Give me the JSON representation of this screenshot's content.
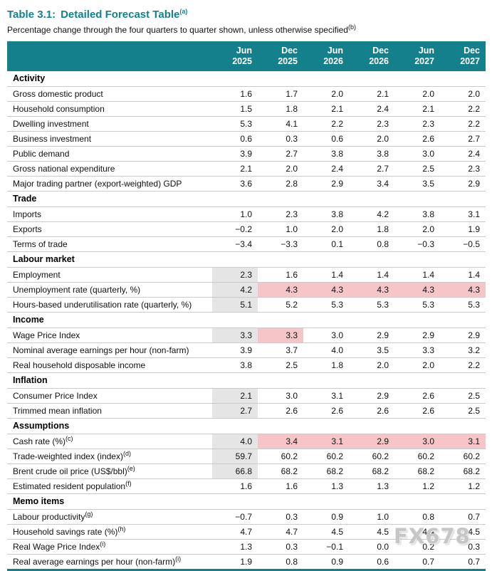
{
  "title": {
    "prefix": "Table 3.1:",
    "text": "Detailed Forecast Table",
    "sup": "(a)"
  },
  "subtitle": {
    "text": "Percentage change through the four quarters to quarter shown, unless otherwise specified",
    "sup": "(b)"
  },
  "columns": [
    "Jun 2025",
    "Dec 2025",
    "Jun 2026",
    "Dec 2026",
    "Jun 2027",
    "Dec 2027"
  ],
  "watermark": "FX678",
  "colors": {
    "header_background": "#14808c",
    "title_text": "#14808c",
    "actual_cell_shading": "#e5e5e5",
    "highlight_cell_shading": "#f6c5c8",
    "row_divider": "#cbcbcb"
  },
  "sections": [
    {
      "name": "Activity",
      "rows": [
        {
          "label": "Gross domestic product",
          "values": [
            "1.6",
            "1.7",
            "2.0",
            "2.1",
            "2.0",
            "2.0"
          ]
        },
        {
          "label": "Household consumption",
          "values": [
            "1.5",
            "1.8",
            "2.1",
            "2.4",
            "2.1",
            "2.2"
          ]
        },
        {
          "label": "Dwelling investment",
          "values": [
            "5.3",
            "4.1",
            "2.2",
            "2.3",
            "2.3",
            "2.2"
          ]
        },
        {
          "label": "Business investment",
          "values": [
            "0.6",
            "0.3",
            "0.6",
            "2.0",
            "2.6",
            "2.7"
          ]
        },
        {
          "label": "Public demand",
          "values": [
            "3.9",
            "2.7",
            "3.8",
            "3.8",
            "3.0",
            "2.4"
          ]
        },
        {
          "label": "Gross national expenditure",
          "values": [
            "2.1",
            "2.0",
            "2.4",
            "2.7",
            "2.5",
            "2.3"
          ]
        },
        {
          "label": "Major trading partner (export-weighted) GDP",
          "values": [
            "3.6",
            "2.8",
            "2.9",
            "3.4",
            "3.5",
            "2.9"
          ]
        }
      ]
    },
    {
      "name": "Trade",
      "rows": [
        {
          "label": "Imports",
          "values": [
            "1.0",
            "2.3",
            "3.8",
            "4.2",
            "3.8",
            "3.1"
          ]
        },
        {
          "label": "Exports",
          "values": [
            "−0.2",
            "1.0",
            "2.0",
            "1.8",
            "2.0",
            "1.9"
          ]
        },
        {
          "label": "Terms of trade",
          "values": [
            "−3.4",
            "−3.3",
            "0.1",
            "0.8",
            "−0.3",
            "−0.5"
          ]
        }
      ]
    },
    {
      "name": "Labour market",
      "rows": [
        {
          "label": "Employment",
          "values": [
            "2.3",
            "1.6",
            "1.4",
            "1.4",
            "1.4",
            "1.4"
          ],
          "shaded": [
            0
          ]
        },
        {
          "label": "Unemployment rate (quarterly, %)",
          "values": [
            "4.2",
            "4.3",
            "4.3",
            "4.3",
            "4.3",
            "4.3"
          ],
          "shaded": [
            0
          ],
          "highlight": [
            1,
            2,
            3,
            4,
            5
          ]
        },
        {
          "label": "Hours-based underutilisation rate (quarterly, %)",
          "values": [
            "5.1",
            "5.2",
            "5.3",
            "5.3",
            "5.3",
            "5.3"
          ],
          "shaded": [
            0
          ]
        }
      ]
    },
    {
      "name": "Income",
      "rows": [
        {
          "label": "Wage Price Index",
          "values": [
            "3.3",
            "3.3",
            "3.0",
            "2.9",
            "2.9",
            "2.9"
          ],
          "shaded": [
            0
          ],
          "highlight": [
            1
          ]
        },
        {
          "label": "Nominal average earnings per hour (non-farm)",
          "values": [
            "3.9",
            "3.7",
            "4.0",
            "3.5",
            "3.3",
            "3.2"
          ]
        },
        {
          "label": "Real household disposable income",
          "values": [
            "3.8",
            "2.5",
            "1.8",
            "2.0",
            "2.0",
            "2.2"
          ]
        }
      ]
    },
    {
      "name": "Inflation",
      "rows": [
        {
          "label": "Consumer Price Index",
          "values": [
            "2.1",
            "3.0",
            "3.1",
            "2.9",
            "2.6",
            "2.5"
          ],
          "shaded": [
            0
          ]
        },
        {
          "label": "Trimmed mean inflation",
          "values": [
            "2.7",
            "2.6",
            "2.6",
            "2.6",
            "2.6",
            "2.5"
          ],
          "shaded": [
            0
          ]
        }
      ]
    },
    {
      "name": "Assumptions",
      "rows": [
        {
          "label": "Cash rate (%)",
          "sup": "(c)",
          "values": [
            "4.0",
            "3.4",
            "3.1",
            "2.9",
            "3.0",
            "3.1"
          ],
          "shaded": [
            0
          ],
          "highlight": [
            1,
            2,
            3,
            4,
            5
          ]
        },
        {
          "label": "Trade-weighted index (index)",
          "sup": "(d)",
          "values": [
            "59.7",
            "60.2",
            "60.2",
            "60.2",
            "60.2",
            "60.2"
          ],
          "shaded": [
            0
          ]
        },
        {
          "label": "Brent crude oil price (US$/bbl)",
          "sup": "(e)",
          "values": [
            "66.8",
            "68.2",
            "68.2",
            "68.2",
            "68.2",
            "68.2"
          ],
          "shaded": [
            0
          ]
        },
        {
          "label": "Estimated resident population",
          "sup": "(f)",
          "values": [
            "1.6",
            "1.6",
            "1.3",
            "1.3",
            "1.2",
            "1.2"
          ]
        }
      ]
    },
    {
      "name": "Memo items",
      "rows": [
        {
          "label": "Labour productivity",
          "sup": "(g)",
          "values": [
            "−0.7",
            "0.3",
            "0.9",
            "1.0",
            "0.8",
            "0.7"
          ]
        },
        {
          "label": "Household savings rate (%)",
          "sup": "(h)",
          "values": [
            "4.7",
            "4.7",
            "4.5",
            "4.5",
            "4.4",
            "4.5"
          ]
        },
        {
          "label": "Real Wage Price Index",
          "sup": "(i)",
          "values": [
            "1.3",
            "0.3",
            "−0.1",
            "0.0",
            "0.2",
            "0.3"
          ]
        },
        {
          "label": "Real average earnings per hour (non-farm)",
          "sup": "(i)",
          "values": [
            "1.9",
            "0.8",
            "0.9",
            "0.6",
            "0.7",
            "0.7"
          ]
        }
      ]
    }
  ]
}
